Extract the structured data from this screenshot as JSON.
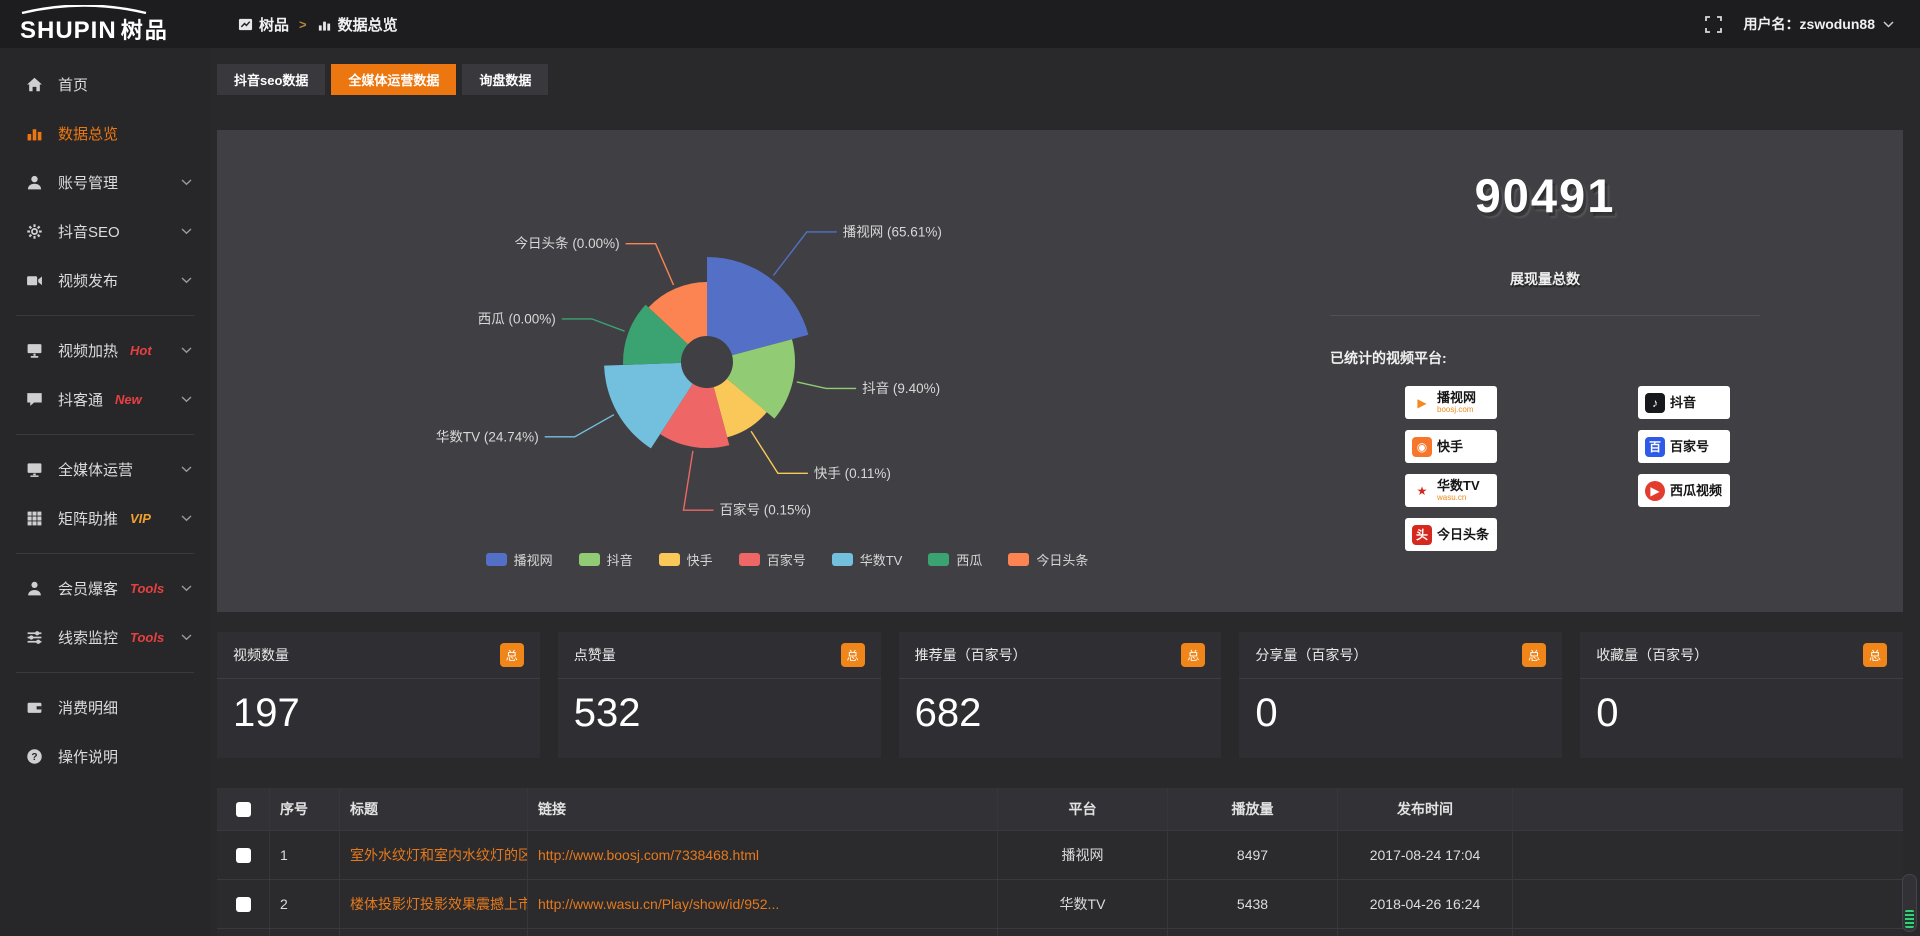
{
  "logo": {
    "text_en": "SHUPIN",
    "text_zh": "树品"
  },
  "topbar": {
    "breadcrumb": [
      {
        "label": "树品",
        "icon": "app-icon"
      },
      {
        "label": "数据总览",
        "icon": "chart-icon"
      }
    ],
    "separator": ">",
    "username_label": "用户名：zswodun88"
  },
  "sidebar": {
    "items": [
      {
        "label": "首页",
        "icon": "home-icon"
      },
      {
        "label": "数据总览",
        "icon": "bar-chart-icon",
        "active": true
      },
      {
        "label": "账号管理",
        "icon": "user-icon",
        "expandable": true
      },
      {
        "label": "抖音SEO",
        "icon": "gear-icon",
        "expandable": true
      },
      {
        "label": "视频发布",
        "icon": "video-publish-icon",
        "expandable": true
      },
      {
        "divider": true
      },
      {
        "label": "视频加热",
        "icon": "screen-heat-icon",
        "badge": "Hot",
        "badge_color": "#e84040",
        "expandable": true
      },
      {
        "label": "抖客通",
        "icon": "chat-icon",
        "badge": "New",
        "badge_color": "#e84040",
        "expandable": true
      },
      {
        "divider": true
      },
      {
        "label": "全媒体运营",
        "icon": "monitor-icon",
        "expandable": true
      },
      {
        "label": "矩阵助推",
        "icon": "grid-icon",
        "badge": "VIP",
        "badge_color": "#f0a12c",
        "expandable": true
      },
      {
        "divider": true
      },
      {
        "label": "会员爆客",
        "icon": "member-icon",
        "badge": "Tools",
        "badge_color": "#e84040",
        "expandable": true
      },
      {
        "label": "线索监控",
        "icon": "sliders-icon",
        "badge": "Tools",
        "badge_color": "#e84040",
        "expandable": true
      },
      {
        "divider": true
      },
      {
        "label": "消费明细",
        "icon": "wallet-icon"
      },
      {
        "label": "操作说明",
        "icon": "help-icon"
      }
    ]
  },
  "tabs": [
    {
      "label": "抖音seo数据"
    },
    {
      "label": "全媒体运营数据",
      "active": true
    },
    {
      "label": "询盘数据"
    }
  ],
  "chart_data": {
    "type": "pie",
    "style": "nightingale-rose-donut",
    "legend_position": "bottom",
    "inner_radius": 26,
    "slices": [
      {
        "label": "播视网",
        "pct": 65.61,
        "color": "#5470c6",
        "sweep": 75,
        "radius": 105,
        "line_len": 55
      },
      {
        "label": "抖音",
        "pct": 9.4,
        "color": "#91cc75",
        "sweep": 55,
        "radius": 88,
        "line_len": 30
      },
      {
        "label": "快手",
        "pct": 0.11,
        "color": "#fac858",
        "sweep": 35,
        "radius": 78,
        "line_len": 50
      },
      {
        "label": "百家号",
        "pct": 0.15,
        "color": "#ee6666",
        "sweep": 48,
        "radius": 86,
        "line_len": 60,
        "label_side": "right"
      },
      {
        "label": "华数TV",
        "pct": 24.74,
        "color": "#73c0de",
        "sweep": 55,
        "radius": 103,
        "line_len": 45
      },
      {
        "label": "西瓜",
        "pct": 0.0,
        "color": "#3ba272",
        "sweep": 45,
        "radius": 84,
        "line_len": 35
      },
      {
        "label": "今日头条",
        "pct": 0.0,
        "color": "#fc8452",
        "sweep": 47,
        "radius": 80,
        "line_len": 45
      }
    ]
  },
  "summary": {
    "total_value": "90491",
    "total_label": "展现量总数",
    "platforms_label": "已统计的视频平台:",
    "platforms": [
      {
        "name": "播视网",
        "sub": "boosj.com",
        "glyph": "▶",
        "icon_bg": "transparent",
        "icon_fg": "#f28a1e",
        "shape": "square"
      },
      {
        "name": "抖音",
        "glyph": "♪",
        "icon_bg": "#17181c",
        "icon_fg": "#ffffff",
        "shape": "square"
      },
      {
        "name": "快手",
        "glyph": "◉",
        "icon_bg": "#f7762b",
        "icon_fg": "#ffffff",
        "shape": "square"
      },
      {
        "name": "百家号",
        "glyph": "百",
        "icon_bg": "#2d5ae6",
        "icon_fg": "#ffffff",
        "shape": "square"
      },
      {
        "name": "华数TV",
        "sub": "wasu.cn",
        "glyph": "★",
        "icon_bg": "transparent",
        "icon_fg": "#d5281e",
        "shape": "square"
      },
      {
        "name": "西瓜视频",
        "glyph": "▶",
        "icon_bg": "#e23c2e",
        "icon_fg": "#ffffff",
        "shape": "circle"
      },
      {
        "name": "今日头条",
        "glyph": "头",
        "icon_bg": "#d5281e",
        "icon_fg": "#ffffff",
        "shape": "square"
      }
    ]
  },
  "stats": [
    {
      "title": "视频数量",
      "badge": "总",
      "value": "197"
    },
    {
      "title": "点赞量",
      "badge": "总",
      "value": "532"
    },
    {
      "title": "推荐量（百家号）",
      "badge": "总",
      "value": "682"
    },
    {
      "title": "分享量（百家号）",
      "badge": "总",
      "value": "0"
    },
    {
      "title": "收藏量（百家号）",
      "badge": "总",
      "value": "0"
    }
  ],
  "table": {
    "headers": [
      "序号",
      "标题",
      "链接",
      "平台",
      "播放量",
      "发布时间"
    ],
    "rows": [
      {
        "index": "1",
        "title": "室外水纹灯和室内水纹灯的区别和简介",
        "link": "http://www.boosj.com/7338468.html",
        "platform": "播视网",
        "plays": "8497",
        "time": "2017-08-24 17:04"
      },
      {
        "index": "2",
        "title": "楼体投影灯投影效果震撼上市",
        "link": "http://www.wasu.cn/Play/show/id/952...",
        "platform": "华数TV",
        "plays": "5438",
        "time": "2018-04-26 16:24"
      }
    ]
  },
  "colors": {
    "accent_orange": "#ec7710",
    "badge_orange": "#f08519",
    "hot_red": "#e84040",
    "vip_orange": "#f0a12c",
    "link_orange": "#e5791c",
    "panel_bg": "#404044",
    "page_bg": "#29292c",
    "sidebar_bg": "#27272a",
    "topbar_bg": "#1d1d20"
  }
}
